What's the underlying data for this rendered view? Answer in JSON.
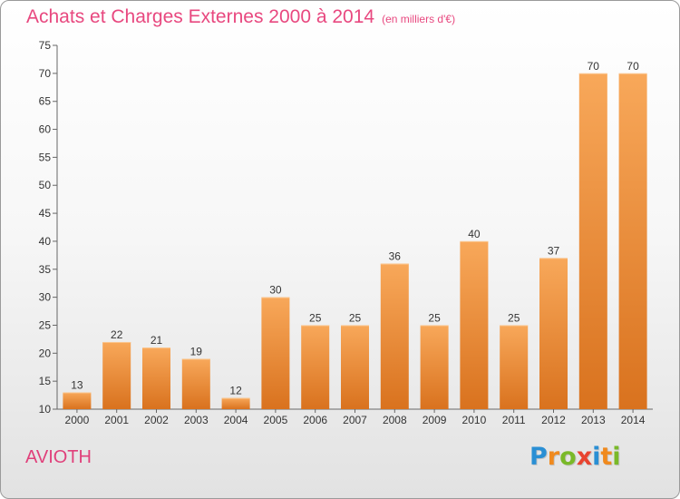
{
  "title": "Achats et Charges Externes 2000 à 2014",
  "title_unit": "(en milliers d'€)",
  "commune": "AVIOTH",
  "logo": {
    "text": "Proxiti",
    "letters": [
      {
        "ch": "P",
        "color": "#2a8fd4"
      },
      {
        "ch": "r",
        "color": "#f08a1e"
      },
      {
        "ch": "o",
        "color": "#7ab929"
      },
      {
        "ch": "x",
        "color": "#e8432f"
      },
      {
        "ch": "i",
        "color": "#2a8fd4"
      },
      {
        "ch": "t",
        "color": "#f08a1e"
      },
      {
        "ch": "i",
        "color": "#7ab929"
      }
    ]
  },
  "colors": {
    "bar_light": "#f8a85a",
    "bar_dark": "#d9721e",
    "title": "#e8487f"
  },
  "chart_data": {
    "type": "bar",
    "title": "Achats et Charges Externes 2000 à 2014",
    "categories": [
      "2000",
      "2001",
      "2002",
      "2003",
      "2004",
      "2005",
      "2006",
      "2007",
      "2008",
      "2009",
      "2010",
      "2011",
      "2012",
      "2013",
      "2014"
    ],
    "values": [
      13,
      22,
      21,
      19,
      12,
      30,
      25,
      25,
      36,
      25,
      40,
      25,
      37,
      70,
      70
    ],
    "ylim": [
      10,
      75
    ],
    "yticks": [
      10,
      15,
      20,
      25,
      30,
      35,
      40,
      45,
      50,
      55,
      60,
      65,
      70,
      75
    ],
    "xlabel": "",
    "ylabel": "",
    "grid": false,
    "data_labels": true
  }
}
